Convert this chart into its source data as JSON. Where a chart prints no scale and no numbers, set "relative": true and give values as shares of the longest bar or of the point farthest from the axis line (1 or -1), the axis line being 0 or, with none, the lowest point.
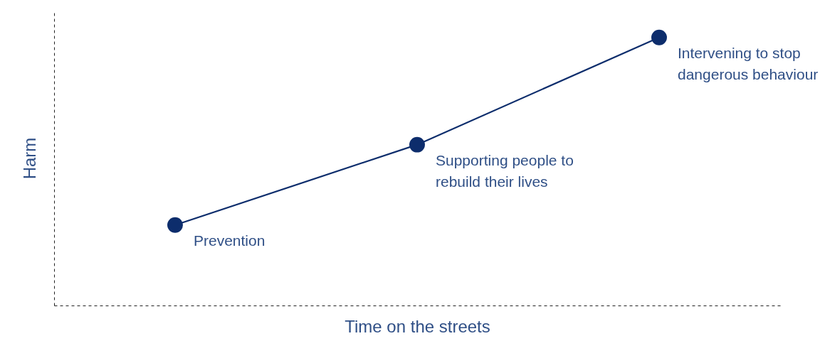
{
  "chart_data": {
    "type": "line",
    "relative": true,
    "xlabel": "Time on the streets",
    "ylabel": "Harm",
    "categories": [
      null,
      null,
      null
    ],
    "values": [
      0.3,
      0.6,
      1
    ],
    "color": "#0d2d6c",
    "marker": "circle",
    "grid": false,
    "annotations": [
      "Prevention",
      "Supporting people to\nrebuild their lives",
      "Intervening to stop\ndangerous behaviour"
    ]
  }
}
